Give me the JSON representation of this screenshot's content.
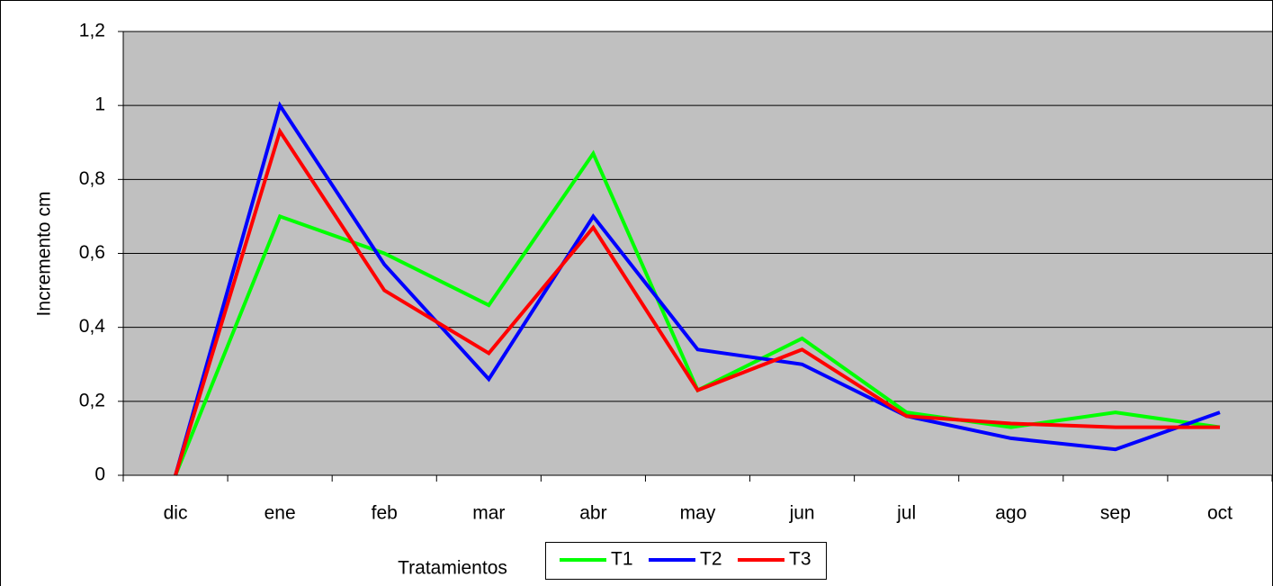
{
  "chart_data": {
    "type": "line",
    "y_label": "Incremento cm",
    "x_label": "Tratamientos",
    "categories": [
      "dic",
      "ene",
      "feb",
      "mar",
      "abr",
      "may",
      "jun",
      "jul",
      "ago",
      "sep",
      "oct"
    ],
    "series": [
      {
        "name": "T1",
        "color": "#00ff00",
        "values": [
          0,
          0.7,
          0.6,
          0.46,
          0.87,
          0.23,
          0.37,
          0.17,
          0.13,
          0.17,
          0.13
        ]
      },
      {
        "name": "T2",
        "color": "#0000ff",
        "values": [
          0,
          1.0,
          0.57,
          0.26,
          0.7,
          0.34,
          0.3,
          0.16,
          0.1,
          0.07,
          0.17
        ]
      },
      {
        "name": "T3",
        "color": "#ff0000",
        "values": [
          0,
          0.93,
          0.5,
          0.33,
          0.67,
          0.23,
          0.34,
          0.16,
          0.14,
          0.13,
          0.13
        ]
      }
    ],
    "ylim": [
      0,
      1.2
    ],
    "yticks": [
      0,
      {
        "value": 0.2,
        "label": "0,2"
      },
      {
        "value": 0.4,
        "label": "0,4"
      },
      {
        "value": 0.6,
        "label": "0,6"
      },
      {
        "value": 0.8,
        "label": "0,8"
      },
      1,
      {
        "value": 1.2,
        "label": "1,2"
      }
    ],
    "grid": true,
    "legend": "bottom"
  }
}
